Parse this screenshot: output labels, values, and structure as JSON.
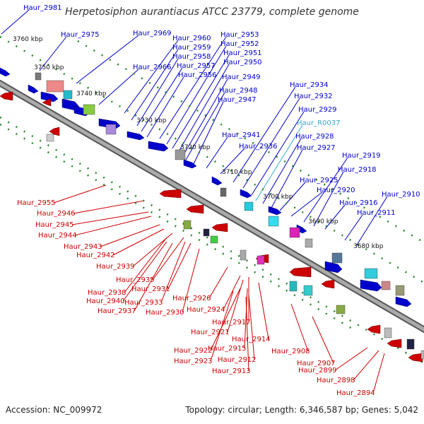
{
  "title": "Herpetosiphon aurantiacus ATCC 23779, complete genome",
  "footer": {
    "accession": "Accession: NC_009972",
    "summary": "Topology: circular; Length: 6,346,587 bp; Genes: 5,042"
  },
  "colors": {
    "forward": "#0000cc",
    "reverse": "#cc0000",
    "rna": "#33aacc",
    "backbone": "#888888",
    "tick": "#228822"
  },
  "scale_labels": [
    "3760 kbp",
    "3750 kbp",
    "3740 kbp",
    "3730 kbp",
    "3720 kbp",
    "3710 kbp",
    "3700 kbp",
    "3690 kbp",
    "3680 kbp"
  ],
  "forward_genes": [
    "Haur_2981",
    "Haur_2975",
    "Haur_2969",
    "Haur_2966",
    "Haur_2960",
    "Haur_2959",
    "Haur_2958",
    "Haur_2957",
    "Haur_2956",
    "Haur_2953",
    "Haur_2952",
    "Haur_2951",
    "Haur_2950",
    "Haur_2949",
    "Haur_2948",
    "Haur_2947",
    "Haur_2941",
    "Haur_2936",
    "Haur_2934",
    "Haur_2932",
    "Haur_2929",
    "Haur_R0037",
    "Haur_2928",
    "Haur_2927",
    "Haur_2925",
    "Haur_2920",
    "Haur_2919",
    "Haur_2918",
    "Haur_2916",
    "Haur_2911",
    "Haur_2910"
  ],
  "reverse_genes": [
    "Haur_2955",
    "Haur_2946",
    "Haur_2945",
    "Haur_2944",
    "Haur_2943",
    "Haur_2942",
    "Haur_2939",
    "Haur_2935",
    "Haur_2938",
    "Haur_2931",
    "Haur_2940",
    "Haur_2933",
    "Haur_2937",
    "Haur_2930",
    "Haur_2926",
    "Haur_2924",
    "Haur_2917",
    "Haur_2921",
    "Haur_2914",
    "Haur_2915",
    "Haur_2922",
    "Haur_2912",
    "Haur_2908",
    "Haur_2923",
    "Haur_2913",
    "Haur_2907",
    "Haur_2899",
    "Haur_2898",
    "Haur_2894"
  ]
}
